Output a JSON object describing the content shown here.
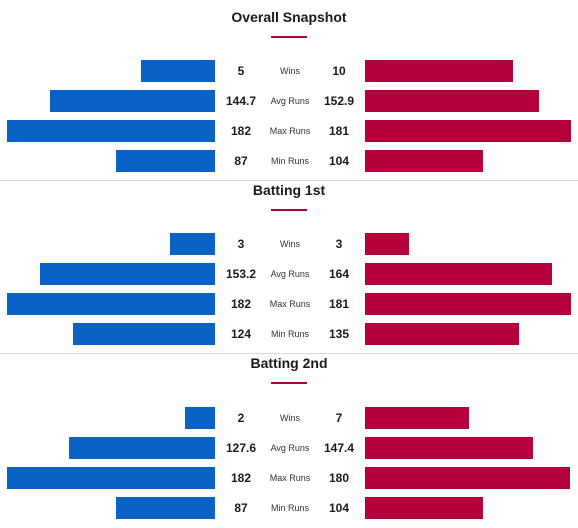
{
  "colors": {
    "team_left": "#0b62c6",
    "team_right": "#b5003b",
    "accent": "#b2003a"
  },
  "sections": [
    {
      "title": "Overall Snapshot",
      "rows": [
        {
          "metric": "Wins",
          "left": "5",
          "right": "10",
          "left_value": 5,
          "right_value": 10
        },
        {
          "metric": "Avg Runs",
          "left": "144.7",
          "right": "152.9",
          "left_value": 144.7,
          "right_value": 152.9
        },
        {
          "metric": "Max Runs",
          "left": "182",
          "right": "181",
          "left_value": 182,
          "right_value": 181
        },
        {
          "metric": "Min Runs",
          "left": "87",
          "right": "104",
          "left_value": 87,
          "right_value": 104
        }
      ]
    },
    {
      "title": "Batting 1st",
      "rows": [
        {
          "metric": "Wins",
          "left": "3",
          "right": "3",
          "left_value": 3,
          "right_value": 3
        },
        {
          "metric": "Avg Runs",
          "left": "153.2",
          "right": "164",
          "left_value": 153.2,
          "right_value": 164
        },
        {
          "metric": "Max Runs",
          "left": "182",
          "right": "181",
          "left_value": 182,
          "right_value": 181
        },
        {
          "metric": "Min Runs",
          "left": "124",
          "right": "135",
          "left_value": 124,
          "right_value": 135
        }
      ]
    },
    {
      "title": "Batting 2nd",
      "rows": [
        {
          "metric": "Wins",
          "left": "2",
          "right": "7",
          "left_value": 2,
          "right_value": 7
        },
        {
          "metric": "Avg Runs",
          "left": "127.6",
          "right": "147.4",
          "left_value": 127.6,
          "right_value": 147.4
        },
        {
          "metric": "Max Runs",
          "left": "182",
          "right": "180",
          "left_value": 182,
          "right_value": 180
        },
        {
          "metric": "Min Runs",
          "left": "87",
          "right": "104",
          "left_value": 87,
          "right_value": 104
        }
      ]
    }
  ]
}
